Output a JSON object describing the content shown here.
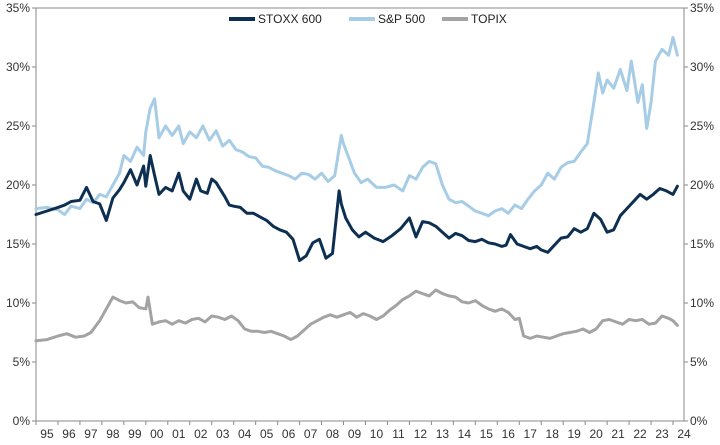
{
  "chart_data": {
    "type": "line",
    "title": "",
    "xlabel": "",
    "ylabel": "",
    "x_labels": [
      "95",
      "96",
      "97",
      "98",
      "99",
      "00",
      "01",
      "02",
      "03",
      "04",
      "05",
      "06",
      "07",
      "08",
      "09",
      "10",
      "11",
      "12",
      "13",
      "14",
      "15",
      "16",
      "17",
      "18",
      "19",
      "20",
      "21",
      "22",
      "23",
      "24"
    ],
    "xlim": [
      1995,
      2024.5
    ],
    "ylim": [
      0,
      35
    ],
    "y_ticks": [
      0,
      5,
      10,
      15,
      20,
      25,
      30,
      35
    ],
    "y_tick_labels": [
      "0%",
      "5%",
      "10%",
      "15%",
      "20%",
      "25%",
      "30%",
      "35%"
    ],
    "legend_position": "top-center",
    "series": [
      {
        "name": "STOXX 600",
        "color": "#0d2f52",
        "x": [
          1995.0,
          1995.5,
          1996.0,
          1996.3,
          1996.6,
          1997.0,
          1997.3,
          1997.6,
          1997.9,
          1998.2,
          1998.5,
          1998.8,
          1999.0,
          1999.3,
          1999.6,
          1999.9,
          2000.0,
          2000.2,
          2000.4,
          2000.6,
          2000.9,
          2001.2,
          2001.5,
          2001.7,
          2002.0,
          2002.3,
          2002.5,
          2002.8,
          2003.0,
          2003.2,
          2003.4,
          2003.6,
          2003.8,
          2004.0,
          2004.3,
          2004.6,
          2004.9,
          2005.2,
          2005.5,
          2005.8,
          2006.1,
          2006.4,
          2006.7,
          2007.0,
          2007.3,
          2007.6,
          2007.9,
          2008.2,
          2008.5,
          2008.8,
          2008.9,
          2009.1,
          2009.4,
          2009.7,
          2010.0,
          2010.4,
          2010.8,
          2011.2,
          2011.6,
          2012.0,
          2012.3,
          2012.6,
          2012.9,
          2013.2,
          2013.5,
          2013.8,
          2014.1,
          2014.4,
          2014.7,
          2015.0,
          2015.3,
          2015.6,
          2015.9,
          2016.2,
          2016.4,
          2016.6,
          2016.9,
          2017.2,
          2017.5,
          2017.8,
          2018.0,
          2018.3,
          2018.6,
          2018.9,
          2019.2,
          2019.5,
          2019.8,
          2020.1,
          2020.4,
          2020.7,
          2021.0,
          2021.3,
          2021.6,
          2021.9,
          2022.2,
          2022.5,
          2022.8,
          2023.1,
          2023.4,
          2023.7,
          2024.0,
          2024.2
        ],
        "values": [
          17.5,
          17.8,
          18.1,
          18.3,
          18.6,
          18.7,
          19.8,
          18.6,
          18.4,
          17.0,
          18.9,
          19.6,
          20.2,
          21.3,
          20.0,
          21.6,
          19.9,
          22.5,
          20.8,
          19.2,
          19.8,
          19.5,
          21.0,
          19.5,
          18.8,
          20.5,
          19.5,
          19.3,
          20.5,
          20.2,
          19.6,
          19.0,
          18.3,
          18.2,
          18.1,
          17.6,
          17.6,
          17.3,
          17.0,
          16.5,
          16.2,
          16.0,
          15.4,
          13.6,
          14.0,
          15.1,
          15.4,
          13.8,
          14.2,
          19.5,
          18.4,
          17.2,
          16.2,
          15.6,
          16.0,
          15.5,
          15.2,
          15.7,
          16.3,
          17.2,
          15.6,
          16.9,
          16.8,
          16.5,
          16.0,
          15.5,
          15.9,
          15.7,
          15.3,
          15.2,
          15.4,
          15.1,
          15.0,
          14.8,
          14.9,
          15.8,
          15.0,
          14.8,
          14.6,
          14.8,
          14.5,
          14.3,
          14.9,
          15.5,
          15.6,
          16.3,
          16.0,
          16.3,
          17.6,
          17.1,
          16.0,
          16.2,
          17.4,
          18.0,
          18.6,
          19.2,
          18.8,
          19.2,
          19.7,
          19.5,
          19.2,
          19.9
        ]
      },
      {
        "name": "S&P 500",
        "color": "#a7cce6",
        "x": [
          1995.0,
          1995.5,
          1996.0,
          1996.3,
          1996.6,
          1997.0,
          1997.3,
          1997.6,
          1997.9,
          1998.2,
          1998.5,
          1998.8,
          1999.0,
          1999.3,
          1999.6,
          1999.9,
          2000.0,
          2000.2,
          2000.4,
          2000.6,
          2000.9,
          2001.2,
          2001.5,
          2001.7,
          2002.0,
          2002.3,
          2002.6,
          2002.9,
          2003.2,
          2003.5,
          2003.8,
          2004.1,
          2004.4,
          2004.7,
          2005.0,
          2005.3,
          2005.6,
          2005.9,
          2006.2,
          2006.5,
          2006.8,
          2007.1,
          2007.4,
          2007.7,
          2008.0,
          2008.3,
          2008.6,
          2008.9,
          2009.0,
          2009.2,
          2009.5,
          2009.8,
          2010.1,
          2010.5,
          2010.9,
          2011.3,
          2011.7,
          2012.0,
          2012.3,
          2012.6,
          2012.9,
          2013.2,
          2013.5,
          2013.8,
          2014.1,
          2014.4,
          2014.7,
          2015.0,
          2015.3,
          2015.6,
          2015.9,
          2016.2,
          2016.5,
          2016.8,
          2017.1,
          2017.4,
          2017.7,
          2018.0,
          2018.3,
          2018.6,
          2018.9,
          2019.2,
          2019.5,
          2019.8,
          2020.1,
          2020.4,
          2020.6,
          2020.8,
          2021.0,
          2021.3,
          2021.6,
          2021.9,
          2022.1,
          2022.4,
          2022.6,
          2022.8,
          2023.0,
          2023.2,
          2023.5,
          2023.8,
          2024.0,
          2024.2
        ],
        "values": [
          18.0,
          18.1,
          17.9,
          17.5,
          18.2,
          18.0,
          18.8,
          18.5,
          19.2,
          19.0,
          20.0,
          21.0,
          22.5,
          22.0,
          23.2,
          22.5,
          24.5,
          26.5,
          27.3,
          24.0,
          25.0,
          24.2,
          25.0,
          23.5,
          24.5,
          24.0,
          25.0,
          23.8,
          24.6,
          23.3,
          23.8,
          23.0,
          22.8,
          22.4,
          22.3,
          21.6,
          21.5,
          21.2,
          21.0,
          20.8,
          20.5,
          21.0,
          20.9,
          20.5,
          21.0,
          20.3,
          20.8,
          24.2,
          23.5,
          22.5,
          21.0,
          20.2,
          20.5,
          19.8,
          19.8,
          20.0,
          19.5,
          20.8,
          20.5,
          21.5,
          22.0,
          21.8,
          20.0,
          18.8,
          18.5,
          18.6,
          18.2,
          17.8,
          17.6,
          17.4,
          17.8,
          18.0,
          17.6,
          18.3,
          18.0,
          18.8,
          19.5,
          20.0,
          21.0,
          20.5,
          21.5,
          21.9,
          22.0,
          22.8,
          23.5,
          27.0,
          29.5,
          27.8,
          28.9,
          28.2,
          29.8,
          28.0,
          30.5,
          27.0,
          28.5,
          24.8,
          27.0,
          30.5,
          31.5,
          31.0,
          32.5,
          31.0
        ]
      },
      {
        "name": "TOPIX",
        "color": "#a3a3a3",
        "x": [
          1995.0,
          1995.5,
          1996.0,
          1996.4,
          1996.8,
          1997.2,
          1997.5,
          1997.9,
          1998.2,
          1998.5,
          1998.8,
          1999.1,
          1999.4,
          1999.7,
          2000.0,
          2000.1,
          2000.3,
          2000.6,
          2000.9,
          2001.2,
          2001.5,
          2001.8,
          2002.1,
          2002.4,
          2002.7,
          2003.0,
          2003.3,
          2003.6,
          2003.9,
          2004.2,
          2004.5,
          2004.8,
          2005.1,
          2005.4,
          2005.7,
          2006.0,
          2006.3,
          2006.6,
          2006.9,
          2007.2,
          2007.5,
          2007.8,
          2008.1,
          2008.4,
          2008.7,
          2009.0,
          2009.3,
          2009.6,
          2009.9,
          2010.2,
          2010.5,
          2010.8,
          2011.1,
          2011.4,
          2011.7,
          2012.0,
          2012.3,
          2012.6,
          2012.9,
          2013.2,
          2013.5,
          2013.8,
          2014.1,
          2014.4,
          2014.7,
          2015.0,
          2015.3,
          2015.6,
          2015.9,
          2016.2,
          2016.5,
          2016.8,
          2017.0,
          2017.2,
          2017.5,
          2017.8,
          2018.1,
          2018.4,
          2018.7,
          2019.0,
          2019.3,
          2019.6,
          2019.9,
          2020.2,
          2020.5,
          2020.8,
          2021.1,
          2021.4,
          2021.7,
          2022.0,
          2022.3,
          2022.6,
          2022.9,
          2023.2,
          2023.5,
          2023.8,
          2024.0,
          2024.2
        ],
        "values": [
          6.8,
          6.9,
          7.2,
          7.4,
          7.1,
          7.2,
          7.5,
          8.5,
          9.5,
          10.5,
          10.2,
          10.0,
          10.1,
          9.6,
          9.5,
          10.5,
          8.2,
          8.4,
          8.5,
          8.2,
          8.5,
          8.3,
          8.6,
          8.7,
          8.4,
          8.9,
          8.8,
          8.6,
          8.9,
          8.5,
          7.8,
          7.6,
          7.6,
          7.5,
          7.6,
          7.4,
          7.2,
          6.9,
          7.2,
          7.7,
          8.2,
          8.5,
          8.8,
          9.0,
          8.8,
          9.0,
          9.2,
          8.8,
          9.1,
          8.9,
          8.6,
          8.9,
          9.4,
          9.8,
          10.3,
          10.6,
          11.0,
          10.8,
          10.6,
          11.1,
          10.8,
          10.6,
          10.5,
          10.1,
          10.0,
          10.2,
          9.8,
          9.5,
          9.3,
          9.5,
          9.2,
          8.6,
          8.7,
          7.2,
          7.0,
          7.2,
          7.1,
          7.0,
          7.2,
          7.4,
          7.5,
          7.6,
          7.8,
          7.5,
          7.8,
          8.5,
          8.6,
          8.4,
          8.2,
          8.6,
          8.5,
          8.6,
          8.2,
          8.3,
          8.9,
          8.7,
          8.5,
          8.1
        ]
      }
    ]
  }
}
